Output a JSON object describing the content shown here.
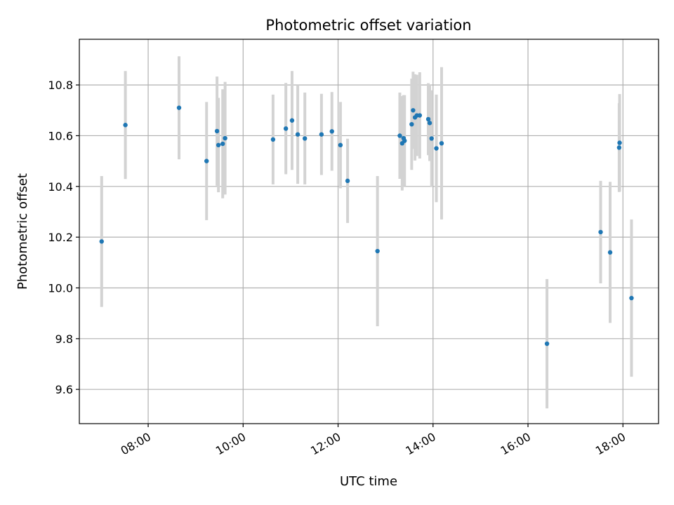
{
  "chart_data": {
    "type": "scatter",
    "title": "Photometric offset variation",
    "xlabel": "UTC time",
    "ylabel": "Photometric offset",
    "x_unit": "hours (UTC)",
    "xlim": [
      6.55,
      18.75
    ],
    "ylim": [
      9.465,
      10.98
    ],
    "grid": true,
    "x_tick_values": [
      8,
      10,
      12,
      14,
      16,
      18
    ],
    "x_tick_labels": [
      "08:00",
      "10:00",
      "12:00",
      "14:00",
      "16:00",
      "18:00"
    ],
    "y_tick_values": [
      9.6,
      9.8,
      10.0,
      10.2,
      10.4,
      10.6,
      10.8
    ],
    "y_tick_labels": [
      "9.6",
      "9.8",
      "10.0",
      "10.2",
      "10.4",
      "10.6",
      "10.8"
    ],
    "colors": {
      "marker": "#1f77b4",
      "errorbar": "#d3d3d3",
      "grid": "#b0b0b0"
    },
    "points": [
      {
        "x": 7.02,
        "y": 10.183,
        "err": 0.258
      },
      {
        "x": 7.52,
        "y": 10.642,
        "err": 0.213
      },
      {
        "x": 8.65,
        "y": 10.71,
        "err": 0.203
      },
      {
        "x": 9.23,
        "y": 10.5,
        "err": 0.233
      },
      {
        "x": 9.45,
        "y": 10.618,
        "err": 0.215
      },
      {
        "x": 9.48,
        "y": 10.563,
        "err": 0.186
      },
      {
        "x": 9.57,
        "y": 10.568,
        "err": 0.215
      },
      {
        "x": 9.62,
        "y": 10.59,
        "err": 0.222
      },
      {
        "x": 10.63,
        "y": 10.585,
        "err": 0.177
      },
      {
        "x": 10.9,
        "y": 10.628,
        "err": 0.18
      },
      {
        "x": 11.03,
        "y": 10.66,
        "err": 0.195
      },
      {
        "x": 11.15,
        "y": 10.605,
        "err": 0.195
      },
      {
        "x": 11.3,
        "y": 10.589,
        "err": 0.181
      },
      {
        "x": 11.65,
        "y": 10.605,
        "err": 0.16
      },
      {
        "x": 11.87,
        "y": 10.617,
        "err": 0.155
      },
      {
        "x": 12.05,
        "y": 10.563,
        "err": 0.17
      },
      {
        "x": 12.2,
        "y": 10.422,
        "err": 0.166
      },
      {
        "x": 12.83,
        "y": 10.145,
        "err": 0.296
      },
      {
        "x": 13.3,
        "y": 10.6,
        "err": 0.17
      },
      {
        "x": 13.35,
        "y": 10.57,
        "err": 0.186
      },
      {
        "x": 13.38,
        "y": 10.59,
        "err": 0.17
      },
      {
        "x": 13.4,
        "y": 10.58,
        "err": 0.18
      },
      {
        "x": 13.55,
        "y": 10.645,
        "err": 0.18
      },
      {
        "x": 13.58,
        "y": 10.7,
        "err": 0.152
      },
      {
        "x": 13.62,
        "y": 10.672,
        "err": 0.17
      },
      {
        "x": 13.66,
        "y": 10.68,
        "err": 0.16
      },
      {
        "x": 13.72,
        "y": 10.68,
        "err": 0.17
      },
      {
        "x": 13.9,
        "y": 10.665,
        "err": 0.142
      },
      {
        "x": 13.93,
        "y": 10.65,
        "err": 0.15
      },
      {
        "x": 13.97,
        "y": 10.589,
        "err": 0.19
      },
      {
        "x": 14.07,
        "y": 10.55,
        "err": 0.212
      },
      {
        "x": 14.18,
        "y": 10.57,
        "err": 0.3
      },
      {
        "x": 16.4,
        "y": 9.78,
        "err": 0.255
      },
      {
        "x": 17.53,
        "y": 10.22,
        "err": 0.202
      },
      {
        "x": 17.73,
        "y": 10.14,
        "err": 0.278
      },
      {
        "x": 17.92,
        "y": 10.553,
        "err": 0.175
      },
      {
        "x": 17.93,
        "y": 10.572,
        "err": 0.192
      },
      {
        "x": 18.18,
        "y": 9.96,
        "err": 0.31
      }
    ]
  }
}
